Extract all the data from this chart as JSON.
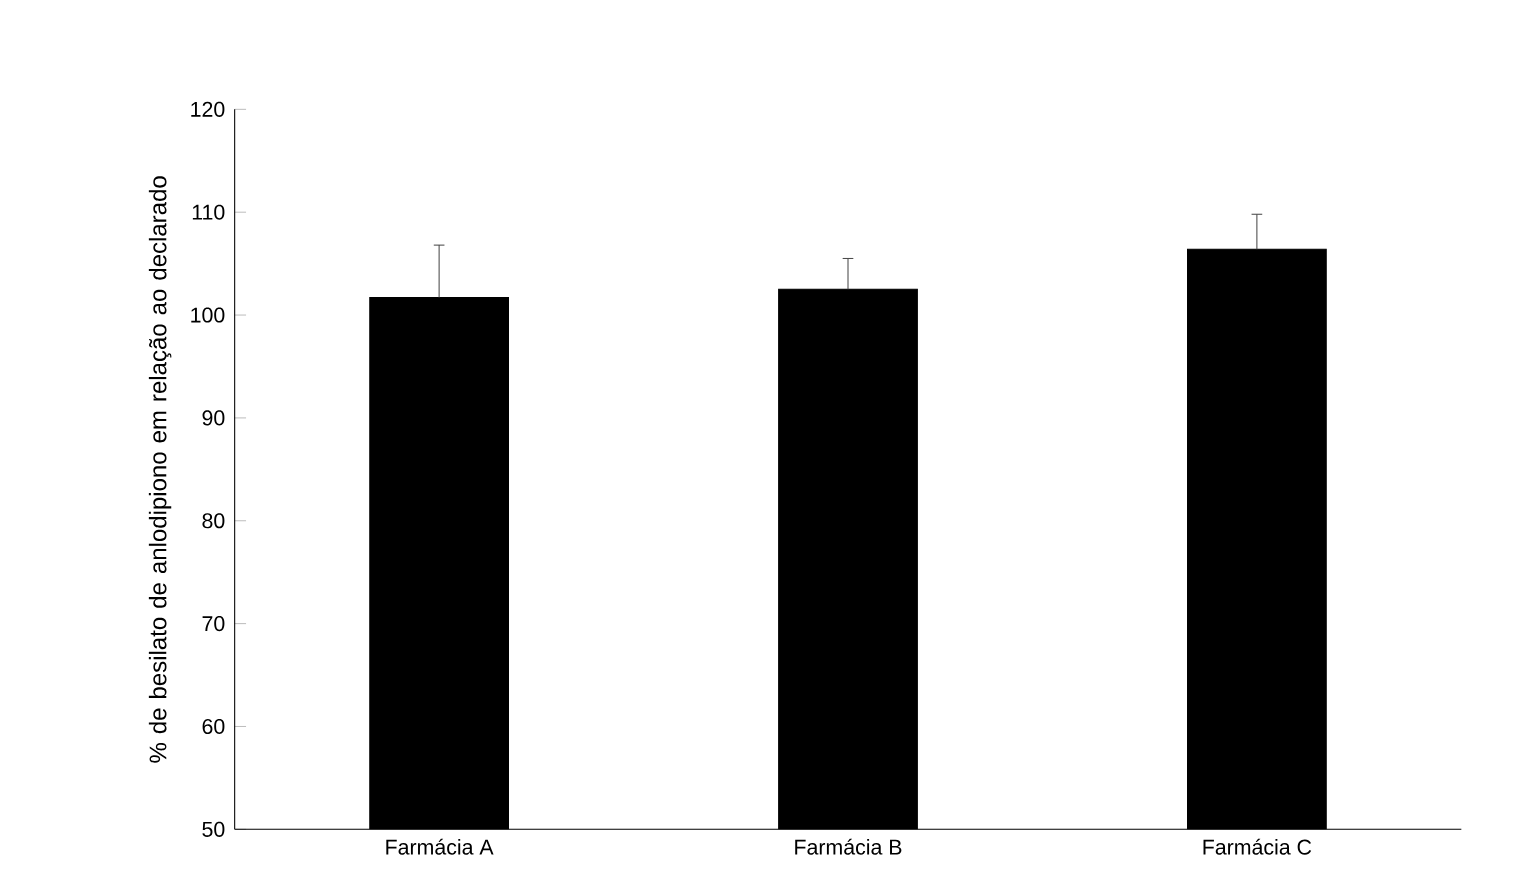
{
  "chart_data": {
    "type": "bar",
    "ylabel": "% de besilato de anlodipiono em relação ao declarado",
    "categories": [
      "Farmácia A",
      "Farmácia B",
      "Farmácia C"
    ],
    "values": [
      101.7,
      102.5,
      106.4
    ],
    "errors": [
      5.1,
      3.0,
      3.4
    ],
    "color": "#000000",
    "ylim": [
      50,
      120
    ],
    "yticks": [
      50,
      60,
      70,
      80,
      90,
      100,
      110,
      120
    ],
    "grid": false
  }
}
